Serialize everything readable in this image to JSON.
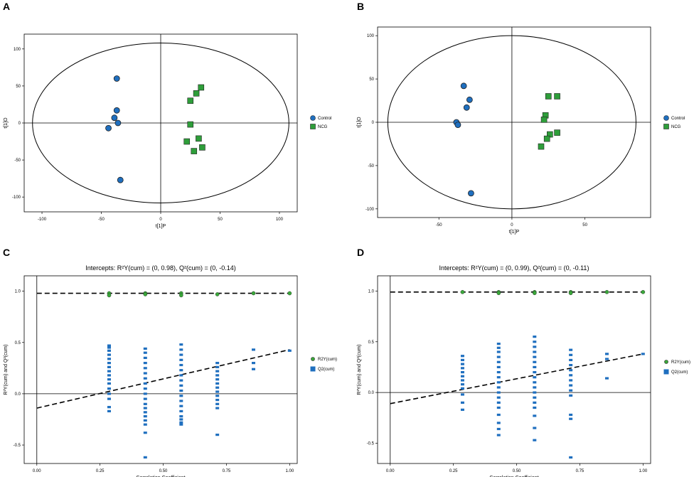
{
  "colors": {
    "control": "#1f6fbf",
    "ncg": "#2e9e3a",
    "r2y": "#3aa83a",
    "q2": "#1f6fbf",
    "axis": "#000000"
  },
  "chart_data": [
    {
      "panel": "A",
      "type": "scatter",
      "title": "",
      "xlabel": "t[1]P",
      "ylabel": "t[1]O",
      "xlim": [
        -115,
        115
      ],
      "ylim": [
        -120,
        120
      ],
      "xticks": [
        -100,
        -50,
        0,
        50,
        100
      ],
      "yticks": [
        -100,
        -50,
        0,
        50,
        100
      ],
      "ellipse": {
        "rx": 108,
        "ry": 108
      },
      "legend": "right",
      "series": [
        {
          "name": "Control",
          "marker": "circle",
          "x": [
            -37,
            -37,
            -39,
            -36,
            -44,
            -34
          ],
          "y": [
            60,
            17,
            7,
            0,
            -7,
            -77
          ]
        },
        {
          "name": "NCG",
          "marker": "square",
          "x": [
            25,
            34,
            30,
            25,
            22,
            32,
            35,
            28
          ],
          "y": [
            30,
            48,
            40,
            -2,
            -25,
            -21,
            -33,
            -38
          ]
        }
      ]
    },
    {
      "panel": "B",
      "type": "scatter",
      "title": "",
      "xlabel": "t[1]P",
      "ylabel": "t[1]O",
      "xlim": [
        -92,
        95
      ],
      "ylim": [
        -110,
        110
      ],
      "xticks": [
        -50,
        0,
        50
      ],
      "yticks": [
        -100,
        -50,
        0,
        50,
        100
      ],
      "ellipse": {
        "rx": 85,
        "ry": 100
      },
      "legend": "right",
      "series": [
        {
          "name": "Control",
          "marker": "circle",
          "x": [
            -33,
            -29,
            -31,
            -38,
            -37,
            -28
          ],
          "y": [
            42,
            26,
            17,
            0,
            -3,
            -82
          ]
        },
        {
          "name": "NCG",
          "marker": "square",
          "x": [
            25,
            31,
            23,
            22,
            26,
            24,
            31,
            20
          ],
          "y": [
            30,
            30,
            8,
            3,
            -14,
            -19,
            -12,
            -28
          ]
        }
      ]
    },
    {
      "panel": "C",
      "type": "scatter",
      "title": "Intercepts: R²Y(cum) = (0, 0.98), Q²(cum) = (0, -0.14)",
      "xlabel": "Correlation Coefficient",
      "ylabel": "R²Y(cum) and Q²(cum)",
      "xlim": [
        -0.05,
        1.03
      ],
      "ylim": [
        -0.68,
        1.15
      ],
      "xticks": [
        "0.00",
        "0.25",
        "0.50",
        "0.75",
        "1.00"
      ],
      "yticks": [
        "-0.5",
        "0.0",
        "0.5",
        "1.0"
      ],
      "lines": [
        {
          "name": "R2Y fit",
          "x": [
            0,
            1
          ],
          "y": [
            0.98,
            0.98
          ]
        },
        {
          "name": "Q2 fit",
          "x": [
            0,
            1
          ],
          "y": [
            -0.14,
            0.43
          ]
        }
      ],
      "legend": "right",
      "series": [
        {
          "name": "R2Y(cum)",
          "marker": "circle",
          "x": [
            0.286,
            0.286,
            0.429,
            0.429,
            0.571,
            0.571,
            0.714,
            0.857,
            1.0
          ],
          "y": [
            0.98,
            0.96,
            0.98,
            0.97,
            0.98,
            0.96,
            0.97,
            0.98,
            0.98
          ]
        },
        {
          "name": "Q2(cum)",
          "marker": "square",
          "x": [
            0.286,
            0.286,
            0.286,
            0.286,
            0.286,
            0.286,
            0.286,
            0.286,
            0.286,
            0.286,
            0.286,
            0.286,
            0.286,
            0.286,
            0.286,
            0.286,
            0.429,
            0.429,
            0.429,
            0.429,
            0.429,
            0.429,
            0.429,
            0.429,
            0.429,
            0.429,
            0.429,
            0.429,
            0.429,
            0.429,
            0.429,
            0.429,
            0.429,
            0.429,
            0.429,
            0.571,
            0.571,
            0.571,
            0.571,
            0.571,
            0.571,
            0.571,
            0.571,
            0.571,
            0.571,
            0.571,
            0.571,
            0.571,
            0.571,
            0.571,
            0.571,
            0.571,
            0.571,
            0.714,
            0.714,
            0.714,
            0.714,
            0.714,
            0.714,
            0.714,
            0.714,
            0.714,
            0.714,
            0.714,
            0.714,
            0.714,
            0.857,
            0.857,
            0.857,
            1.0
          ],
          "y": [
            0.47,
            0.45,
            0.42,
            0.38,
            0.34,
            0.3,
            0.26,
            0.22,
            0.18,
            0.14,
            0.1,
            0.05,
            0.0,
            -0.05,
            -0.13,
            -0.17,
            0.44,
            0.4,
            0.35,
            0.3,
            0.25,
            0.2,
            0.15,
            0.1,
            0.05,
            0.0,
            -0.05,
            -0.1,
            -0.14,
            -0.18,
            -0.22,
            -0.26,
            -0.3,
            -0.38,
            -0.62,
            0.48,
            0.43,
            0.38,
            0.33,
            0.28,
            0.23,
            0.18,
            0.13,
            0.08,
            0.03,
            -0.02,
            -0.07,
            -0.12,
            -0.17,
            -0.22,
            -0.25,
            -0.28,
            -0.3,
            0.3,
            0.26,
            0.22,
            0.18,
            0.14,
            0.1,
            0.06,
            0.02,
            -0.02,
            -0.06,
            -0.1,
            -0.14,
            -0.4,
            0.43,
            0.3,
            0.24,
            0.42
          ]
        }
      ]
    },
    {
      "panel": "D",
      "type": "scatter",
      "title": "Intercepts: R²Y(cum) = (0, 0.99), Q²(cum) = (0, -0.11)",
      "xlabel": "Correlation Coefficient",
      "ylabel": "R²Y(cum) and Q²(cum)",
      "xlim": [
        -0.05,
        1.03
      ],
      "ylim": [
        -0.7,
        1.15
      ],
      "xticks": [
        "0.00",
        "0.25",
        "0.50",
        "0.75",
        "1.00"
      ],
      "yticks": [
        "-0.5",
        "0.0",
        "0.5",
        "1.0"
      ],
      "lines": [
        {
          "name": "R2Y fit",
          "x": [
            0,
            1
          ],
          "y": [
            0.99,
            0.99
          ]
        },
        {
          "name": "Q2 fit",
          "x": [
            0,
            1
          ],
          "y": [
            -0.11,
            0.38
          ]
        }
      ],
      "legend": "right",
      "series": [
        {
          "name": "R2Y(cum)",
          "marker": "circle",
          "x": [
            0.286,
            0.429,
            0.429,
            0.571,
            0.571,
            0.714,
            0.714,
            0.857,
            1.0
          ],
          "y": [
            0.99,
            0.99,
            0.98,
            0.99,
            0.98,
            0.99,
            0.98,
            0.99,
            0.99
          ]
        },
        {
          "name": "Q2(cum)",
          "marker": "square",
          "x": [
            0.286,
            0.286,
            0.286,
            0.286,
            0.286,
            0.286,
            0.286,
            0.286,
            0.286,
            0.286,
            0.286,
            0.286,
            0.429,
            0.429,
            0.429,
            0.429,
            0.429,
            0.429,
            0.429,
            0.429,
            0.429,
            0.429,
            0.429,
            0.429,
            0.429,
            0.429,
            0.429,
            0.429,
            0.429,
            0.429,
            0.571,
            0.571,
            0.571,
            0.571,
            0.571,
            0.571,
            0.571,
            0.571,
            0.571,
            0.571,
            0.571,
            0.571,
            0.571,
            0.571,
            0.571,
            0.571,
            0.571,
            0.571,
            0.714,
            0.714,
            0.714,
            0.714,
            0.714,
            0.714,
            0.714,
            0.714,
            0.714,
            0.714,
            0.714,
            0.714,
            0.714,
            0.857,
            0.857,
            0.857,
            1.0
          ],
          "y": [
            0.36,
            0.32,
            0.28,
            0.24,
            0.2,
            0.16,
            0.12,
            0.08,
            0.04,
            -0.02,
            -0.1,
            -0.17,
            0.48,
            0.44,
            0.4,
            0.35,
            0.3,
            0.25,
            0.2,
            0.15,
            0.1,
            0.05,
            0.0,
            -0.05,
            -0.1,
            -0.15,
            -0.22,
            -0.3,
            -0.36,
            -0.42,
            0.55,
            0.5,
            0.45,
            0.4,
            0.35,
            0.3,
            0.25,
            0.2,
            0.15,
            0.1,
            0.05,
            0.0,
            -0.05,
            -0.1,
            -0.15,
            -0.23,
            -0.35,
            -0.47,
            0.42,
            0.37,
            0.32,
            0.27,
            0.22,
            0.17,
            0.12,
            0.07,
            0.02,
            -0.03,
            -0.22,
            -0.26,
            -0.64,
            0.38,
            0.33,
            0.14,
            0.38
          ]
        }
      ]
    }
  ]
}
